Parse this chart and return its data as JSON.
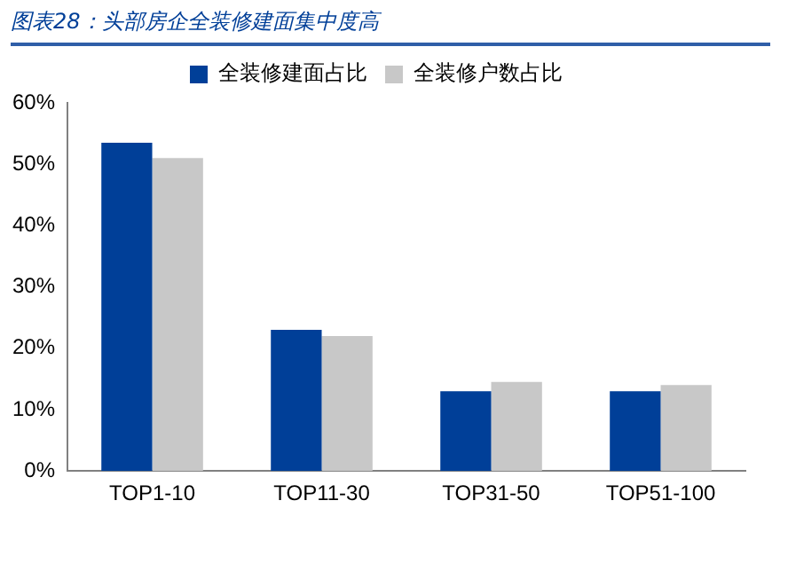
{
  "chart_data": {
    "type": "bar",
    "title": "图表28：头部房企全装修建面集中度高",
    "categories": [
      "TOP1-10",
      "TOP11-30",
      "TOP31-50",
      "TOP51-100"
    ],
    "series": [
      {
        "name": "全装修建面占比",
        "color": "#003f98",
        "values": [
          53.5,
          23,
          13,
          13
        ]
      },
      {
        "name": "全装修户数占比",
        "color": "#c8c8c8",
        "values": [
          51,
          22,
          14.5,
          14
        ]
      }
    ],
    "ylim": [
      0,
      60
    ],
    "yticks": [
      {
        "value": 0,
        "label": "0%"
      },
      {
        "value": 10,
        "label": "10%"
      },
      {
        "value": 20,
        "label": "20%"
      },
      {
        "value": 30,
        "label": "30%"
      },
      {
        "value": 40,
        "label": "40%"
      },
      {
        "value": 50,
        "label": "50%"
      },
      {
        "value": 60,
        "label": "60%"
      }
    ],
    "grid": false,
    "legend": "top"
  }
}
